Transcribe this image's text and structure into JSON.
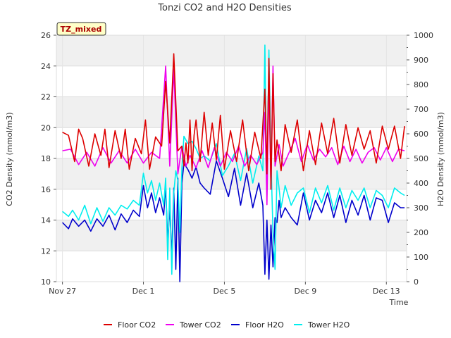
{
  "chart_data": {
    "type": "line",
    "title": "Tonzi CO2 and H2O Densities",
    "badge": "TZ_mixed",
    "xlabel": "Time",
    "ylabel_left": "CO2 Density (mmol/m3)",
    "ylabel_right": "H2O Density (mmol/m3)",
    "xlim_days": [
      -0.3,
      17
    ],
    "x_ticks": [
      {
        "day": 0,
        "label": "Nov 27"
      },
      {
        "day": 4,
        "label": "Dec 1"
      },
      {
        "day": 8,
        "label": "Dec 5"
      },
      {
        "day": 12,
        "label": "Dec 9"
      },
      {
        "day": 16,
        "label": "Dec 13"
      }
    ],
    "ylim_left": [
      10,
      26
    ],
    "yticks_left": [
      10,
      12,
      14,
      16,
      18,
      20,
      22,
      24,
      26
    ],
    "ylim_right": [
      0,
      1000
    ],
    "yticks_right": [
      0,
      100,
      200,
      300,
      400,
      500,
      600,
      700,
      800,
      900,
      1000
    ],
    "grid": true,
    "legend_position": "bottom",
    "series": [
      {
        "name": "Floor CO2",
        "axis": "left",
        "color": "#dd0000",
        "x": [
          0.0,
          0.3,
          0.6,
          0.8,
          1.0,
          1.3,
          1.6,
          1.9,
          2.1,
          2.3,
          2.6,
          2.9,
          3.1,
          3.3,
          3.6,
          3.9,
          4.1,
          4.3,
          4.6,
          4.9,
          5.1,
          5.3,
          5.5,
          5.7,
          5.9,
          6.0,
          6.1,
          6.2,
          6.3,
          6.4,
          6.5,
          6.6,
          6.8,
          7.0,
          7.2,
          7.4,
          7.6,
          7.8,
          8.0,
          8.3,
          8.6,
          8.9,
          9.2,
          9.5,
          9.8,
          10.0,
          10.1,
          10.2,
          10.3,
          10.4,
          10.5,
          10.6,
          10.8,
          11.0,
          11.3,
          11.6,
          11.9,
          12.2,
          12.5,
          12.8,
          13.1,
          13.4,
          13.7,
          14.0,
          14.3,
          14.6,
          14.9,
          15.2,
          15.5,
          15.8,
          16.1,
          16.4,
          16.7,
          16.9
        ],
        "y": [
          19.7,
          19.5,
          17.8,
          19.9,
          19.3,
          17.5,
          19.6,
          18.2,
          19.9,
          17.4,
          19.8,
          18.0,
          19.9,
          17.3,
          19.3,
          18.3,
          20.5,
          17.3,
          19.4,
          18.8,
          23.0,
          19.0,
          24.8,
          18.5,
          18.8,
          17.5,
          19.0,
          17.7,
          20.5,
          17.2,
          19.5,
          20.5,
          17.8,
          21.0,
          18.2,
          20.3,
          17.9,
          20.8,
          17.3,
          19.8,
          17.8,
          20.5,
          17.2,
          19.7,
          18.0,
          22.5,
          17.0,
          24.5,
          16.0,
          23.5,
          17.8,
          19.2,
          17.2,
          20.2,
          18.4,
          20.5,
          17.2,
          19.8,
          17.6,
          20.3,
          18.3,
          20.6,
          17.7,
          20.2,
          18.2,
          20.0,
          18.6,
          19.8,
          17.7,
          20.1,
          18.6,
          20.1,
          18.0,
          20.1
        ]
      },
      {
        "name": "Tower CO2",
        "axis": "left",
        "color": "#ee00ee",
        "x": [
          0.0,
          0.4,
          0.8,
          1.2,
          1.6,
          2.0,
          2.4,
          2.8,
          3.2,
          3.6,
          4.0,
          4.4,
          4.8,
          5.1,
          5.3,
          5.5,
          5.7,
          5.9,
          6.1,
          6.3,
          6.6,
          6.9,
          7.2,
          7.5,
          7.8,
          8.1,
          8.4,
          8.7,
          9.0,
          9.3,
          9.6,
          9.9,
          10.0,
          10.1,
          10.2,
          10.3,
          10.4,
          10.5,
          10.7,
          10.9,
          11.2,
          11.5,
          11.8,
          12.1,
          12.4,
          12.7,
          13.0,
          13.3,
          13.6,
          13.9,
          14.2,
          14.5,
          14.8,
          15.1,
          15.4,
          15.7,
          16.0,
          16.3,
          16.6,
          16.9
        ],
        "y": [
          18.5,
          18.6,
          17.6,
          18.4,
          17.5,
          18.7,
          17.7,
          18.5,
          17.7,
          18.6,
          17.7,
          18.4,
          18.0,
          24.0,
          17.5,
          23.8,
          17.0,
          18.8,
          17.5,
          18.2,
          17.4,
          18.5,
          17.4,
          18.7,
          17.5,
          18.4,
          17.8,
          18.8,
          17.5,
          18.2,
          17.6,
          18.4,
          21.0,
          15.0,
          23.0,
          16.0,
          24.0,
          17.5,
          18.9,
          17.5,
          18.4,
          19.3,
          17.8,
          18.9,
          17.9,
          18.6,
          18.1,
          18.7,
          17.6,
          18.8,
          17.8,
          18.6,
          17.7,
          18.4,
          18.7,
          17.9,
          18.7,
          17.8,
          18.6,
          18.5
        ]
      },
      {
        "name": "Floor H2O",
        "axis": "right",
        "color": "#0000cc",
        "x": [
          0.0,
          0.3,
          0.5,
          0.8,
          1.1,
          1.4,
          1.7,
          2.0,
          2.3,
          2.6,
          2.9,
          3.2,
          3.5,
          3.8,
          4.0,
          4.2,
          4.4,
          4.6,
          4.8,
          5.0,
          5.1,
          5.2,
          5.3,
          5.4,
          5.5,
          5.6,
          5.7,
          5.8,
          5.9,
          6.0,
          6.2,
          6.4,
          6.6,
          6.8,
          7.0,
          7.3,
          7.6,
          7.9,
          8.2,
          8.5,
          8.8,
          9.1,
          9.4,
          9.7,
          9.9,
          10.0,
          10.1,
          10.2,
          10.3,
          10.4,
          10.5,
          10.6,
          10.7,
          10.8,
          11.0,
          11.3,
          11.6,
          11.9,
          12.2,
          12.5,
          12.8,
          13.1,
          13.4,
          13.7,
          14.0,
          14.3,
          14.6,
          14.9,
          15.2,
          15.5,
          15.8,
          16.1,
          16.4,
          16.7,
          16.9
        ],
        "y": [
          240,
          215,
          255,
          225,
          250,
          205,
          255,
          225,
          270,
          210,
          275,
          240,
          290,
          265,
          390,
          300,
          360,
          280,
          340,
          270,
          390,
          160,
          300,
          100,
          380,
          50,
          420,
          0,
          400,
          480,
          455,
          420,
          465,
          400,
          380,
          355,
          490,
          420,
          345,
          460,
          310,
          440,
          300,
          400,
          310,
          30,
          250,
          10,
          230,
          60,
          260,
          240,
          330,
          260,
          300,
          260,
          230,
          360,
          250,
          330,
          280,
          360,
          260,
          350,
          240,
          330,
          270,
          350,
          250,
          340,
          330,
          240,
          320,
          300,
          300
        ]
      },
      {
        "name": "Tower H2O",
        "axis": "right",
        "color": "#00eeee",
        "x": [
          0.0,
          0.3,
          0.5,
          0.8,
          1.1,
          1.4,
          1.7,
          2.0,
          2.3,
          2.6,
          2.9,
          3.2,
          3.5,
          3.8,
          4.0,
          4.2,
          4.4,
          4.6,
          4.8,
          5.0,
          5.1,
          5.2,
          5.3,
          5.4,
          5.5,
          5.6,
          5.7,
          5.8,
          5.9,
          6.0,
          6.2,
          6.4,
          6.6,
          6.8,
          7.0,
          7.3,
          7.6,
          7.9,
          8.2,
          8.5,
          8.8,
          9.1,
          9.4,
          9.7,
          9.9,
          10.0,
          10.1,
          10.2,
          10.3,
          10.4,
          10.5,
          10.6,
          10.7,
          10.8,
          11.0,
          11.3,
          11.6,
          11.9,
          12.2,
          12.5,
          12.8,
          13.1,
          13.4,
          13.7,
          14.0,
          14.3,
          14.6,
          14.9,
          15.2,
          15.5,
          15.8,
          16.1,
          16.4,
          16.7,
          16.9
        ],
        "y": [
          285,
          265,
          290,
          250,
          310,
          235,
          300,
          245,
          300,
          270,
          310,
          295,
          330,
          310,
          440,
          360,
          410,
          330,
          400,
          310,
          420,
          90,
          380,
          30,
          360,
          450,
          410,
          200,
          460,
          590,
          560,
          570,
          540,
          500,
          510,
          490,
          560,
          430,
          470,
          520,
          410,
          540,
          400,
          510,
          450,
          960,
          350,
          940,
          500,
          200,
          50,
          450,
          380,
          300,
          390,
          310,
          360,
          380,
          280,
          380,
          320,
          390,
          290,
          380,
          300,
          370,
          330,
          380,
          300,
          370,
          350,
          300,
          380,
          360,
          350
        ]
      }
    ]
  }
}
